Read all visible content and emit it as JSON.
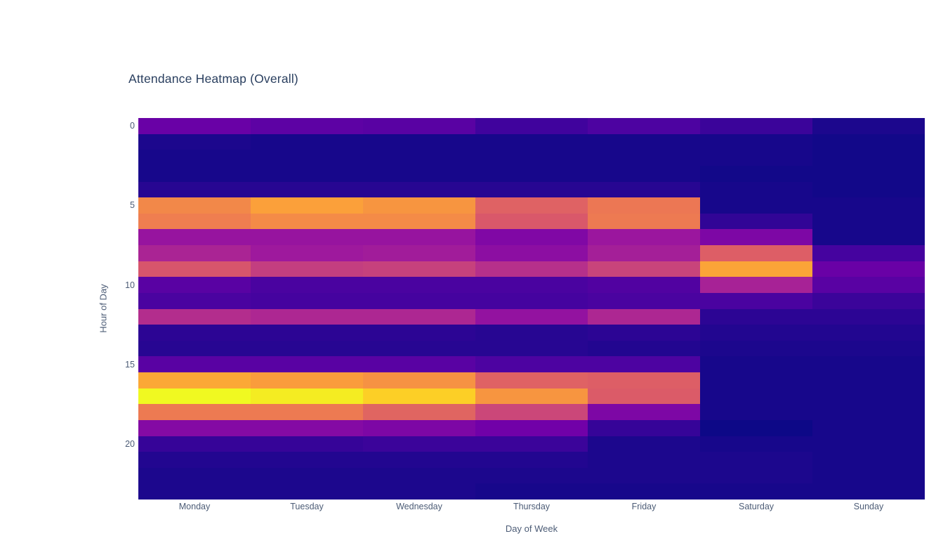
{
  "page": {
    "background": "#ffffff"
  },
  "chart": {
    "title": "Attendance Heatmap (Overall)",
    "xlabel": "Day of Week",
    "ylabel": "Hour of Day"
  },
  "colors": {
    "title_text": "#2a3f5f",
    "tick_text": "#4c5c76",
    "colorscale_low": "#0d0887",
    "colorscale_high": "#f0f921"
  },
  "chart_data": {
    "type": "heatmap",
    "title": "Attendance Heatmap (Overall)",
    "xlabel": "Day of Week",
    "ylabel": "Hour of Day",
    "x_categories": [
      "Monday",
      "Tuesday",
      "Wednesday",
      "Thursday",
      "Friday",
      "Saturday",
      "Sunday"
    ],
    "y_categories": [
      0,
      1,
      2,
      3,
      4,
      5,
      6,
      7,
      8,
      9,
      10,
      11,
      12,
      13,
      14,
      15,
      16,
      17,
      18,
      19,
      20,
      21,
      22,
      23
    ],
    "y_tick_hours": [
      0,
      5,
      10,
      15,
      20
    ],
    "y_tick_labels": [
      "0",
      "5",
      "10",
      "15",
      "20"
    ],
    "colorbar_shown": false,
    "grid": false,
    "colorscale": "plasma",
    "colorscale_stops": [
      [
        0.0,
        "#0d0887"
      ],
      [
        0.1111,
        "#46039f"
      ],
      [
        0.2222,
        "#7201a8"
      ],
      [
        0.3333,
        "#9c179e"
      ],
      [
        0.4444,
        "#bd3786"
      ],
      [
        0.5556,
        "#d8576b"
      ],
      [
        0.6667,
        "#ed7953"
      ],
      [
        0.7778,
        "#fb9f3a"
      ],
      [
        0.8889,
        "#fdca26"
      ],
      [
        1.0,
        "#f0f921"
      ]
    ],
    "zmin": 0,
    "zmax": 1,
    "z_normalized": [
      [
        0.2,
        0.17,
        0.16,
        0.1,
        0.13,
        0.09,
        0.03
      ],
      [
        0.03,
        0.02,
        0.02,
        0.02,
        0.02,
        0.02,
        0.01
      ],
      [
        0.02,
        0.02,
        0.02,
        0.02,
        0.02,
        0.02,
        0.01
      ],
      [
        0.02,
        0.02,
        0.02,
        0.02,
        0.02,
        0.01,
        0.01
      ],
      [
        0.05,
        0.05,
        0.05,
        0.05,
        0.05,
        0.02,
        0.01
      ],
      [
        0.71,
        0.78,
        0.75,
        0.59,
        0.66,
        0.02,
        0.02
      ],
      [
        0.68,
        0.72,
        0.72,
        0.56,
        0.67,
        0.07,
        0.02
      ],
      [
        0.32,
        0.32,
        0.32,
        0.26,
        0.33,
        0.25,
        0.02
      ],
      [
        0.38,
        0.34,
        0.35,
        0.29,
        0.36,
        0.58,
        0.11
      ],
      [
        0.55,
        0.47,
        0.48,
        0.42,
        0.49,
        0.79,
        0.2
      ],
      [
        0.16,
        0.12,
        0.12,
        0.12,
        0.14,
        0.37,
        0.16
      ],
      [
        0.12,
        0.11,
        0.11,
        0.11,
        0.12,
        0.12,
        0.09
      ],
      [
        0.41,
        0.39,
        0.39,
        0.31,
        0.39,
        0.06,
        0.06
      ],
      [
        0.06,
        0.06,
        0.06,
        0.05,
        0.06,
        0.04,
        0.04
      ],
      [
        0.05,
        0.05,
        0.05,
        0.05,
        0.04,
        0.03,
        0.03
      ],
      [
        0.16,
        0.16,
        0.16,
        0.13,
        0.13,
        0.02,
        0.02
      ],
      [
        0.8,
        0.77,
        0.74,
        0.59,
        0.58,
        0.02,
        0.02
      ],
      [
        1.0,
        0.97,
        0.9,
        0.75,
        0.57,
        0.02,
        0.02
      ],
      [
        0.67,
        0.67,
        0.6,
        0.5,
        0.25,
        0.02,
        0.02
      ],
      [
        0.27,
        0.27,
        0.25,
        0.22,
        0.08,
        0.0,
        0.02
      ],
      [
        0.08,
        0.08,
        0.09,
        0.09,
        0.03,
        0.02,
        0.02
      ],
      [
        0.04,
        0.04,
        0.04,
        0.04,
        0.03,
        0.03,
        0.02
      ],
      [
        0.03,
        0.03,
        0.03,
        0.03,
        0.03,
        0.03,
        0.02
      ],
      [
        0.03,
        0.03,
        0.03,
        0.02,
        0.02,
        0.02,
        0.02
      ]
    ]
  }
}
